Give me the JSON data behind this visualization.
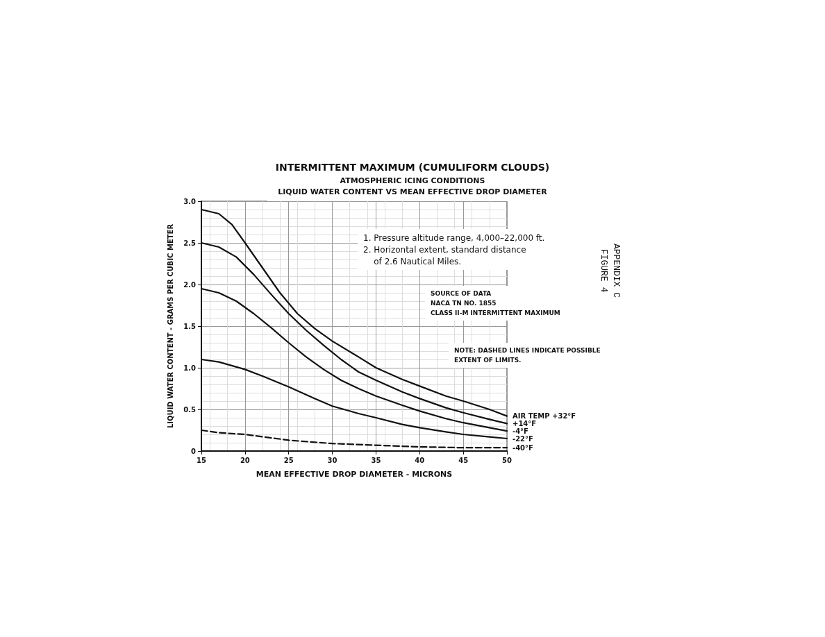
{
  "chart_data": {
    "type": "line",
    "title": "INTERMITTENT MAXIMUM (CUMULIFORM CLOUDS)",
    "subtitle": "ATMOSPHERIC ICING CONDITIONS\nLIQUID WATER CONTENT VS MEAN EFFECTIVE DROP DIAMETER",
    "xlabel": "MEAN EFFECTIVE DROP DIAMETER - MICRONS",
    "ylabel": "LIQUID WATER CONTENT - GRAMS PER CUBIC METER",
    "xlim": [
      15,
      50
    ],
    "xticks": [
      15,
      20,
      25,
      30,
      35,
      40,
      45,
      50
    ],
    "ylim": [
      0,
      3
    ],
    "yticks": [
      0,
      {
        "value": 0.5,
        "label": "0.5"
      },
      {
        "value": 1,
        "label": "1.0"
      },
      {
        "value": 1.5,
        "label": "1.5"
      },
      {
        "value": 2,
        "label": "2.0"
      },
      {
        "value": 2.5,
        "label": "2.5"
      },
      {
        "value": 3,
        "label": "3.0"
      }
    ],
    "grid": true,
    "legend": false,
    "marker": "none",
    "series": [
      {
        "name": "AIR TEMP +32°F",
        "color": "#111111",
        "line_style": "solid",
        "x": [
          15,
          17,
          18.5,
          20,
          22,
          24,
          26,
          28,
          30,
          33,
          35,
          38,
          40,
          43,
          45,
          48,
          50
        ],
        "values": [
          2.9,
          2.85,
          2.72,
          2.5,
          2.2,
          1.9,
          1.65,
          1.47,
          1.32,
          1.13,
          1.0,
          0.86,
          0.78,
          0.66,
          0.6,
          0.5,
          0.42
        ]
      },
      {
        "name": "+14°F",
        "color": "#111111",
        "line_style": "solid",
        "x": [
          15,
          17,
          19,
          21,
          23,
          25,
          27,
          29,
          31,
          33,
          35,
          38,
          40,
          43,
          45,
          48,
          50
        ],
        "values": [
          2.5,
          2.45,
          2.33,
          2.12,
          1.88,
          1.65,
          1.45,
          1.27,
          1.1,
          0.95,
          0.85,
          0.71,
          0.63,
          0.52,
          0.46,
          0.38,
          0.33
        ]
      },
      {
        "name": "-4°F",
        "color": "#111111",
        "line_style": "solid",
        "x": [
          15,
          17,
          19,
          21,
          23,
          25,
          27,
          29,
          31,
          33,
          35,
          38,
          40,
          43,
          45,
          48,
          50
        ],
        "values": [
          1.95,
          1.9,
          1.8,
          1.65,
          1.48,
          1.3,
          1.13,
          0.98,
          0.85,
          0.75,
          0.66,
          0.55,
          0.48,
          0.39,
          0.34,
          0.28,
          0.24
        ]
      },
      {
        "name": "-22°F",
        "color": "#111111",
        "line_style": "solid",
        "x": [
          15,
          17,
          20,
          22,
          25,
          28,
          30,
          33,
          35,
          38,
          40,
          43,
          45,
          48,
          50
        ],
        "values": [
          1.1,
          1.07,
          0.98,
          0.9,
          0.77,
          0.63,
          0.54,
          0.45,
          0.4,
          0.32,
          0.28,
          0.23,
          0.2,
          0.17,
          0.15
        ]
      },
      {
        "name": "-40°F",
        "color": "#111111",
        "line_style": "dashed",
        "x": [
          15,
          17,
          20,
          25,
          30,
          35,
          40,
          45,
          50
        ],
        "values": [
          0.25,
          0.22,
          0.2,
          0.13,
          0.09,
          0.07,
          0.05,
          0.04,
          0.04
        ]
      }
    ],
    "annotations": [
      "1. Pressure altitude range, 4,000–22,000 ft.\n2. Horizontal extent, standard distance\n    of 2.6 Nautical Miles.",
      "SOURCE OF DATA\nNACA TN NO. 1855\nCLASS II-M INTERMITTENT MAXIMUM",
      "NOTE: DASHED LINES INDICATE POSSIBLE\nEXTENT OF LIMITS.",
      "APPENDIX C\nFIGURE 4"
    ]
  }
}
